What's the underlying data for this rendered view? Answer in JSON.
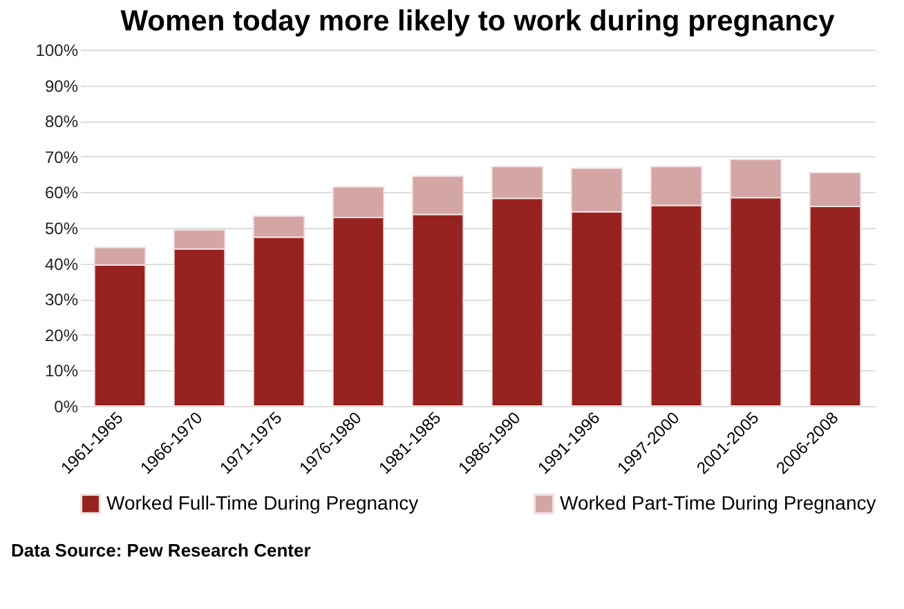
{
  "chart_data": {
    "type": "bar",
    "title": "Women today more likely to work during pregnancy",
    "categories": [
      "1961-1965",
      "1966-1970",
      "1971-1975",
      "1976-1980",
      "1981-1985",
      "1986-1990",
      "1991-1996",
      "1997-2000",
      "2001-2005",
      "2006-2008"
    ],
    "series": [
      {
        "name": "Worked Full-Time During Pregnancy",
        "color": "#96231f",
        "values": [
          39.6,
          44.1,
          47.4,
          52.9,
          53.8,
          58.3,
          54.5,
          56.3,
          58.5,
          56.0
        ]
      },
      {
        "name": "Worked Part-Time During Pregnancy",
        "color": "#d4a5a5",
        "values": [
          4.9,
          5.3,
          5.9,
          8.6,
          10.7,
          8.9,
          12.2,
          10.9,
          10.7,
          9.5
        ]
      }
    ],
    "stacked": true,
    "ylim": [
      0,
      100
    ],
    "yticks": [
      {
        "value": 0,
        "label": "0%"
      },
      {
        "value": 10,
        "label": "10%"
      },
      {
        "value": 20,
        "label": "20%"
      },
      {
        "value": 30,
        "label": "30%"
      },
      {
        "value": 40,
        "label": "40%"
      },
      {
        "value": 50,
        "label": "50%"
      },
      {
        "value": 60,
        "label": "60%"
      },
      {
        "value": 70,
        "label": "70%"
      },
      {
        "value": 80,
        "label": "80%"
      },
      {
        "value": 90,
        "label": "90%"
      },
      {
        "value": 100,
        "label": "100%"
      }
    ],
    "grid": "y",
    "legend": "bottom",
    "annotations": [
      "Data Source: Pew Research Center"
    ]
  }
}
